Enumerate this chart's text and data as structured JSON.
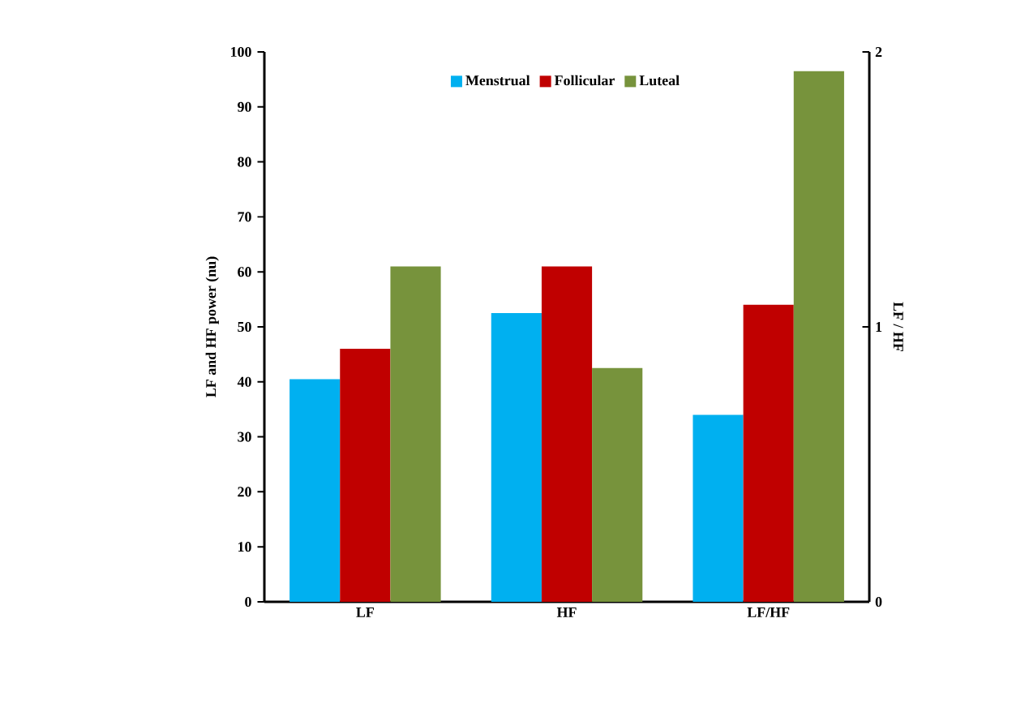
{
  "chart_data": {
    "type": "bar",
    "categories": [
      "LF",
      "HF",
      "LF/HF"
    ],
    "ylabel": "LF and HF power (nu)",
    "y2label": "LF / HF",
    "ylim": [
      0,
      100
    ],
    "yticks": [
      0,
      10,
      20,
      30,
      40,
      50,
      60,
      70,
      80,
      90,
      100
    ],
    "y2lim": [
      0,
      2
    ],
    "y2ticks": [
      0,
      1,
      2
    ],
    "legend": "top",
    "grid": false,
    "series": [
      {
        "name": "Menstrual",
        "color": "#00b0f0",
        "values": [
          40.5,
          52.5,
          null
        ]
      },
      {
        "name": "Follicular",
        "color": "#c00000",
        "values": [
          46,
          61,
          null
        ]
      },
      {
        "name": "Luteal",
        "color": "#77933c",
        "values": [
          61,
          42.5,
          null
        ]
      },
      {
        "color": "#00b0f0",
        "axis": "y2",
        "values": [
          null,
          null,
          0.68
        ]
      },
      {
        "color": "#c00000",
        "axis": "y2",
        "values": [
          null,
          null,
          1.08
        ]
      },
      {
        "color": "#77933c",
        "axis": "y2",
        "values": [
          null,
          null,
          1.93
        ]
      }
    ]
  }
}
